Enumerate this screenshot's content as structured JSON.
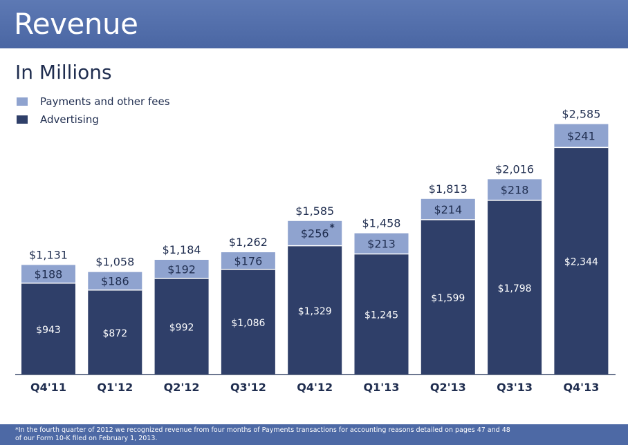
{
  "header": {
    "title": "Revenue"
  },
  "subtitle": "In Millions",
  "colors": {
    "header_bg": "#4f6ba8",
    "payments": "#8fa3cf",
    "advertising": "#2f3f69",
    "text_dark": "#1f2d4f",
    "axis": "#3b4a6b"
  },
  "chart_data": {
    "type": "bar",
    "stacked": true,
    "categories": [
      "Q4'11",
      "Q1'12",
      "Q2'12",
      "Q3'12",
      "Q4'12",
      "Q1'13",
      "Q2'13",
      "Q3'13",
      "Q4'13"
    ],
    "series": [
      {
        "name": "Advertising",
        "values": [
          943,
          872,
          992,
          1086,
          1329,
          1245,
          1599,
          1798,
          2344
        ],
        "labels": [
          "$943",
          "$872",
          "$992",
          "$1,086",
          "$1,329",
          "$1,245",
          "$1,599",
          "$1,798",
          "$2,344"
        ]
      },
      {
        "name": "Payments and other fees",
        "values": [
          188,
          186,
          192,
          176,
          256,
          213,
          214,
          218,
          241
        ],
        "labels": [
          "$188",
          "$186",
          "$192",
          "$176",
          "$256",
          "$213",
          "$214",
          "$218",
          "$241"
        ]
      }
    ],
    "totals": [
      1131,
      1058,
      1184,
      1262,
      1585,
      1458,
      1813,
      2016,
      2585
    ],
    "total_labels": [
      "$1,131",
      "$1,058",
      "$1,184",
      "$1,262",
      "$1,585",
      "$1,458",
      "$1,813",
      "$2,016",
      "$2,585"
    ],
    "annotation": {
      "category_index": 4,
      "text": "*"
    },
    "legend": {
      "position": "top-left",
      "entries": [
        "Payments and other fees",
        "Advertising"
      ]
    },
    "grid": false
  },
  "footnote": "*In the fourth quarter of 2012 we recognized revenue from four months of Payments transactions for accounting reasons detailed on pages 47 and 48 of our Form 10-K filed on February 1, 2013."
}
